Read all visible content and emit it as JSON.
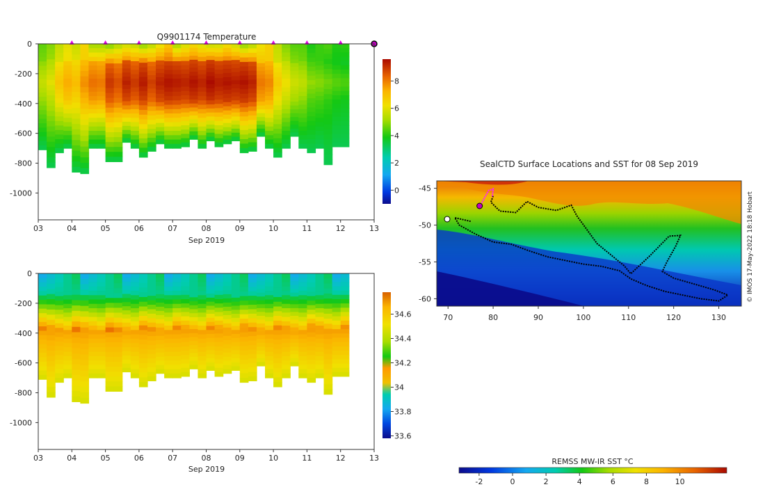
{
  "chart_data": [
    {
      "id": "temperature",
      "type": "heatmap",
      "title": "Q9901174  Temperature",
      "xlabel": "Sep 2019",
      "ylabel": "",
      "x_tick_labels": [
        "03",
        "04",
        "05",
        "06",
        "07",
        "08",
        "09",
        "10",
        "11",
        "12",
        "13"
      ],
      "xlim": [
        3,
        13
      ],
      "y_ticks": [
        0,
        -200,
        -400,
        -600,
        -800,
        -1000
      ],
      "y_tick_labels": [
        "0",
        "-200",
        "-400",
        "-600",
        "-800",
        "-1000"
      ],
      "ylim": [
        -1180,
        0
      ],
      "profile_markers_day": [
        4,
        5,
        6,
        7,
        8,
        9,
        10,
        11,
        12
      ],
      "last_position_day": 13,
      "profiles": {
        "x": [
          3.0,
          3.25,
          3.5,
          3.75,
          4.0,
          4.25,
          4.5,
          4.75,
          5.0,
          5.25,
          5.5,
          5.75,
          6.0,
          6.25,
          6.5,
          6.75,
          7.0,
          7.25,
          7.5,
          7.75,
          8.0,
          8.25,
          8.5,
          8.75,
          9.0,
          9.25,
          9.5,
          9.75,
          10.0,
          10.25,
          10.5,
          10.75,
          11.0,
          11.25,
          11.5,
          11.75,
          12.0
        ],
        "max_depth": [
          710,
          830,
          730,
          700,
          860,
          870,
          700,
          700,
          790,
          790,
          660,
          700,
          760,
          720,
          670,
          700,
          700,
          690,
          640,
          700,
          650,
          690,
          670,
          650,
          730,
          720,
          620,
          700,
          760,
          700,
          620,
          700,
          730,
          700,
          810,
          690,
          690
        ],
        "sst": [
          4.5,
          4.8,
          5.5,
          6.0,
          5.6,
          6.5,
          5.0,
          5.0,
          4.6,
          5.2,
          5.6,
          5.4,
          4.7,
          5.3,
          6.0,
          6.8,
          5.0,
          5.7,
          6.3,
          5.8,
          5.5,
          5.6,
          6.2,
          5.6,
          4.7,
          5.2,
          6.1,
          6.6,
          5.5,
          4.8,
          4.4,
          4.4,
          3.9,
          4.2,
          4.4,
          4.0,
          4.1
        ],
        "core": [
          5.6,
          6.0,
          6.9,
          7.4,
          7.1,
          7.8,
          8.2,
          8.1,
          9.0,
          8.7,
          9.3,
          9.0,
          9.4,
          8.9,
          9.3,
          9.5,
          9.4,
          9.3,
          9.5,
          9.3,
          9.6,
          9.4,
          9.5,
          9.4,
          9.5,
          9.3,
          8.1,
          7.9,
          6.8,
          6.2,
          5.7,
          5.5,
          5.0,
          4.9,
          4.7,
          4.5,
          4.4
        ]
      },
      "colorbar": {
        "ticks": [
          0,
          2,
          4,
          6,
          8
        ],
        "tick_labels": [
          "0",
          "2",
          "4",
          "6",
          "8"
        ],
        "range": [
          -1.0,
          9.6
        ]
      }
    },
    {
      "id": "salinity",
      "type": "heatmap",
      "title": "",
      "xlabel": "Sep 2019",
      "ylabel": "",
      "x_tick_labels": [
        "03",
        "04",
        "05",
        "06",
        "07",
        "08",
        "09",
        "10",
        "11",
        "12",
        "13"
      ],
      "xlim": [
        3,
        13
      ],
      "y_ticks": [
        0,
        -200,
        -400,
        -600,
        -800,
        -1000
      ],
      "y_tick_labels": [
        "0",
        "-200",
        "-400",
        "-600",
        "-800",
        "-1000"
      ],
      "ylim": [
        -1180,
        0
      ],
      "colorbar": {
        "ticks": [
          33.6,
          33.8,
          34,
          34.2,
          34.4,
          34.6
        ],
        "tick_labels": [
          "33.6",
          "33.8",
          "34",
          "34.2",
          "34.4",
          "34.6"
        ],
        "range": [
          33.58,
          34.78
        ]
      }
    },
    {
      "id": "map",
      "type": "heatmap",
      "title": "SealCTD Surface Locations and SST for 08 Sep 2019",
      "x_ticks": [
        70,
        80,
        90,
        100,
        110,
        120,
        130
      ],
      "x_tick_labels": [
        "70",
        "80",
        "90",
        "100",
        "110",
        "120",
        "130"
      ],
      "y_ticks": [
        -45,
        -50,
        -55,
        -60
      ],
      "y_tick_labels": [
        "-45",
        "-50",
        "-55",
        "-60"
      ],
      "xlim": [
        67.5,
        135
      ],
      "ylim": [
        -61,
        -44
      ],
      "track": [
        [
          75,
          -49.5
        ],
        [
          71.5,
          -49
        ],
        [
          72.5,
          -50
        ],
        [
          76,
          -51.2
        ],
        [
          80,
          -52.3
        ],
        [
          84,
          -52.6
        ],
        [
          88,
          -53.5
        ],
        [
          92,
          -54.3
        ],
        [
          96,
          -54.8
        ],
        [
          100,
          -55.3
        ],
        [
          104,
          -55.6
        ],
        [
          108,
          -56.2
        ],
        [
          110.5,
          -57.3
        ],
        [
          114,
          -58.2
        ],
        [
          118,
          -59
        ],
        [
          122,
          -59.5
        ],
        [
          126,
          -60
        ],
        [
          130,
          -60.3
        ],
        [
          132,
          -59.5
        ],
        [
          129,
          -58.8
        ],
        [
          124.5,
          -58
        ],
        [
          120,
          -57.2
        ],
        [
          117.5,
          -56.3
        ],
        [
          118.5,
          -55
        ],
        [
          120.5,
          -52.8
        ],
        [
          121.5,
          -51.4
        ],
        [
          119,
          -51.5
        ],
        [
          114.5,
          -54.3
        ],
        [
          110.5,
          -56.6
        ],
        [
          109,
          -55.5
        ],
        [
          103,
          -52.5
        ],
        [
          98.5,
          -48.7
        ],
        [
          97.3,
          -47.3
        ],
        [
          94,
          -48
        ],
        [
          90,
          -47.6
        ],
        [
          87.5,
          -46.8
        ],
        [
          85,
          -48.3
        ],
        [
          81.5,
          -48.1
        ],
        [
          79.5,
          -46.9
        ],
        [
          80,
          -46
        ]
      ],
      "recent_track": [
        [
          77,
          -47.5
        ],
        [
          78,
          -46.4
        ],
        [
          79,
          -45.3
        ],
        [
          80,
          -45.1
        ],
        [
          79.8,
          -46.2
        ]
      ],
      "current_position": [
        77,
        -47.4
      ]
    }
  ],
  "colorbar_sst": {
    "label": "REMSS MW-IR SST °C",
    "ticks": [
      -2,
      0,
      2,
      4,
      6,
      8,
      10
    ],
    "tick_labels": [
      "-2",
      "0",
      "2",
      "4",
      "6",
      "8",
      "10"
    ],
    "range": [
      -3.2,
      12.8
    ]
  },
  "credit": "© IMOS 17-May-2022 18:18 Hobart"
}
